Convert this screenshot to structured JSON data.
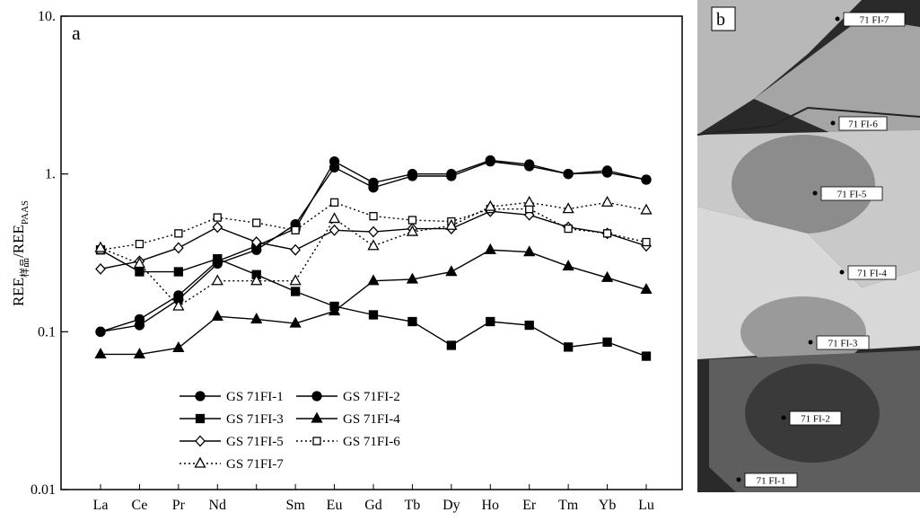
{
  "chart_data": {
    "type": "line",
    "panel_label": "a",
    "y_label": {
      "main": "REE",
      "sub": "样品",
      "sep": "/REE",
      "sub2": "PAAS"
    },
    "categories": [
      "La",
      "Ce",
      "Pr",
      "Nd",
      null,
      "Sm",
      "Eu",
      "Gd",
      "Tb",
      "Dy",
      "Ho",
      "Er",
      "Tm",
      "Yb",
      "Lu"
    ],
    "log_y": true,
    "ylim": [
      0.01,
      10
    ],
    "yticks": [
      0.01,
      0.1,
      {
        "value": 1,
        "label": "1."
      },
      {
        "value": 10,
        "label": "10."
      }
    ],
    "series": [
      {
        "name": "GS 71FI-1",
        "color": "#000000",
        "marker": "circle",
        "filled": true,
        "linestyle": "solid",
        "values": [
          0.1,
          0.12,
          0.17,
          0.28,
          0.35,
          0.45,
          1.2,
          0.88,
          1.0,
          1.0,
          1.22,
          1.15,
          1.0,
          1.05,
          0.92
        ]
      },
      {
        "name": "GS 71FI-2",
        "color": "#000000",
        "marker": "circle",
        "filled": true,
        "linestyle": "solid",
        "values": [
          0.1,
          0.11,
          0.16,
          0.27,
          0.33,
          0.48,
          1.1,
          0.82,
          0.97,
          0.97,
          1.2,
          1.12,
          1.0,
          1.02,
          0.92
        ]
      },
      {
        "name": "GS 71FI-3",
        "color": "#000000",
        "marker": "square",
        "filled": true,
        "linestyle": "solid",
        "values": [
          0.33,
          0.24,
          0.24,
          0.29,
          0.23,
          0.18,
          0.145,
          0.128,
          0.116,
          0.082,
          0.116,
          0.11,
          0.08,
          0.086,
          0.07
        ]
      },
      {
        "name": "GS 71FI-4",
        "color": "#000000",
        "marker": "triangle",
        "filled": true,
        "linestyle": "solid",
        "values": [
          0.072,
          0.072,
          0.079,
          0.125,
          0.12,
          0.113,
          0.135,
          0.21,
          0.215,
          0.24,
          0.33,
          0.32,
          0.26,
          0.22,
          0.185
        ]
      },
      {
        "name": "GS 71FI-5",
        "color": "#000000",
        "marker": "diamond",
        "filled": false,
        "linestyle": "solid",
        "values": [
          0.25,
          0.28,
          0.34,
          0.46,
          0.37,
          0.33,
          0.44,
          0.43,
          0.45,
          0.45,
          0.58,
          0.55,
          0.46,
          0.42,
          0.35
        ]
      },
      {
        "name": "GS 71FI-6",
        "color": "#000000",
        "marker": "square",
        "filled": false,
        "linestyle": "dotted",
        "values": [
          0.33,
          0.36,
          0.42,
          0.53,
          0.49,
          0.44,
          0.66,
          0.54,
          0.51,
          0.5,
          0.6,
          0.6,
          0.45,
          0.42,
          0.37
        ]
      },
      {
        "name": "GS 71FI-7",
        "color": "#000000",
        "marker": "triangle",
        "filled": false,
        "linestyle": "dotted",
        "values": [
          0.34,
          0.27,
          0.145,
          0.21,
          0.21,
          0.21,
          0.52,
          0.35,
          0.43,
          0.47,
          0.62,
          0.66,
          0.6,
          0.66,
          0.59
        ]
      }
    ]
  },
  "photo": {
    "panel_label": "b",
    "spots": [
      "71 FI-7",
      "71 FI-6",
      "71 FI-5",
      "71 FI-4",
      "71 FI-3",
      "71 FI-2",
      "71 FI-1"
    ]
  }
}
